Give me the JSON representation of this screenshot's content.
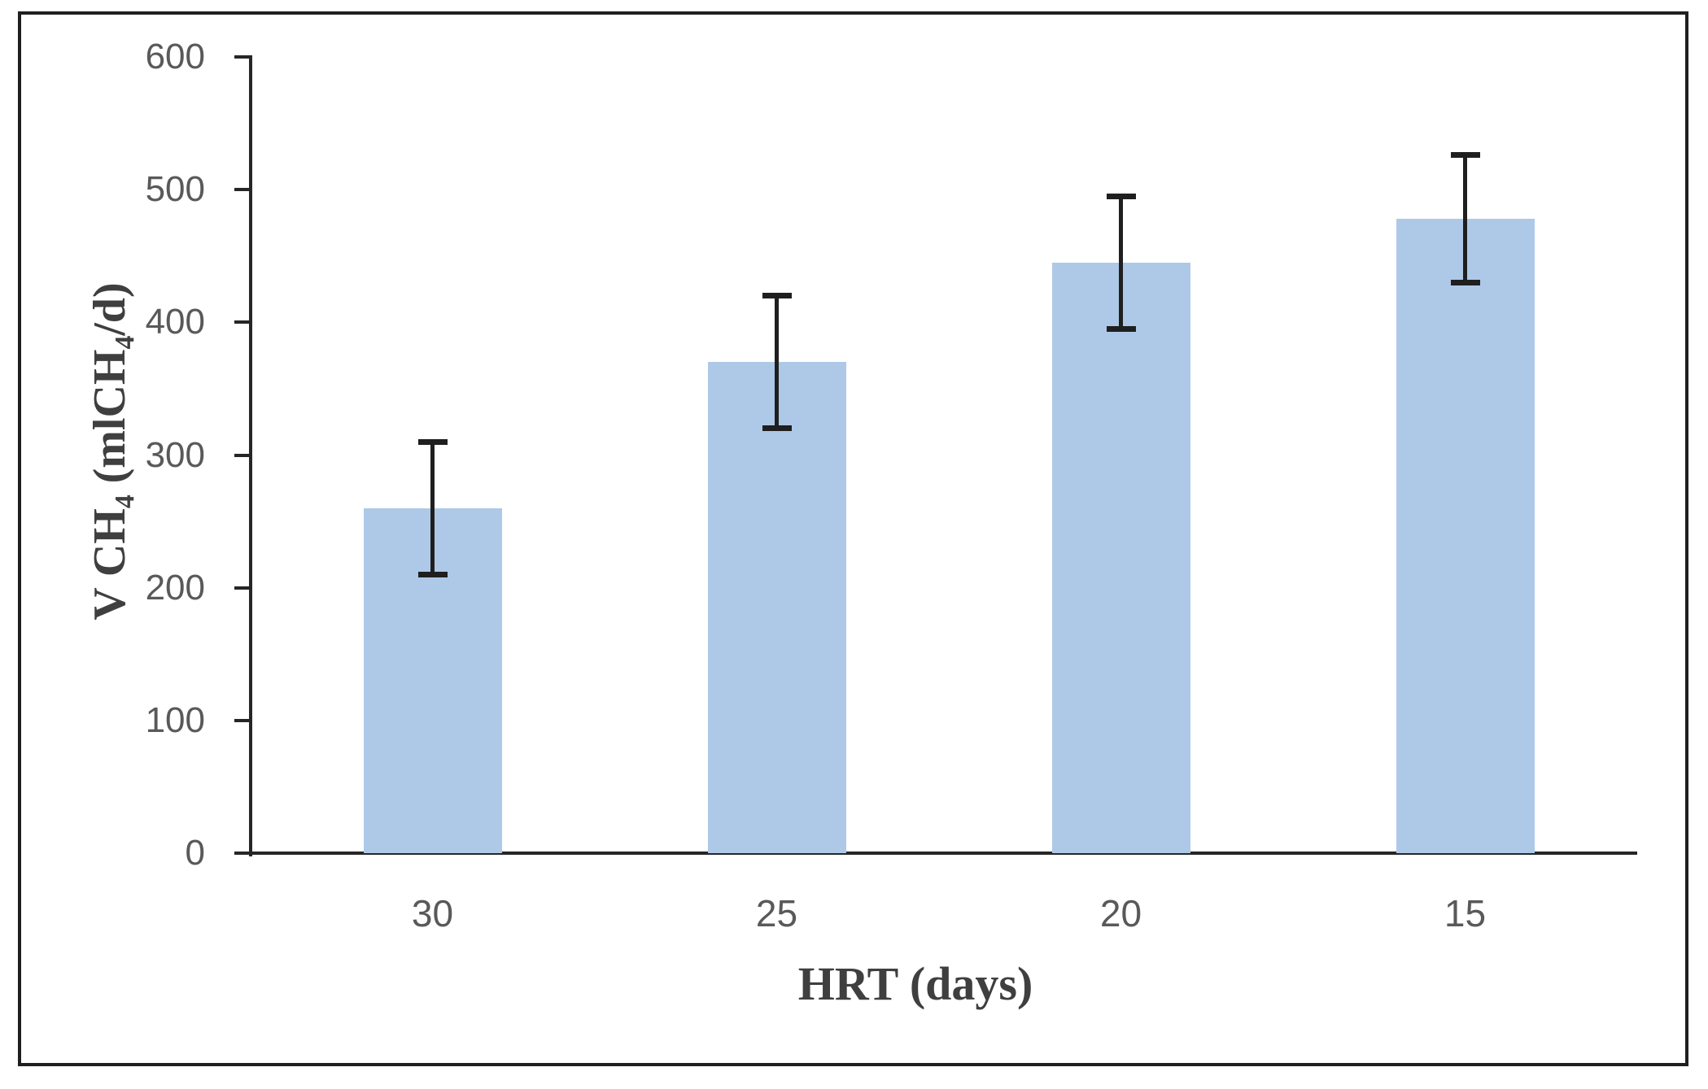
{
  "figure": {
    "background_color": "#ffffff",
    "border_color": "#1f1f1f"
  },
  "chart_data": {
    "type": "bar",
    "title": "",
    "xlabel": "HRT (days)",
    "ylabel": "V CH₄ (mlCH₄/d)",
    "categories": [
      "30",
      "25",
      "20",
      "15"
    ],
    "series": [
      {
        "name": "V CH4",
        "values": [
          260,
          370,
          445,
          478
        ],
        "error_plus": [
          50,
          50,
          50,
          48
        ],
        "error_minus": [
          50,
          50,
          50,
          48
        ]
      }
    ],
    "ylim": [
      0,
      600
    ],
    "ytick_interval": 100,
    "yticks": [
      0,
      100,
      200,
      300,
      400,
      500,
      600
    ],
    "grid": false,
    "legend": false,
    "bar_color": "#AEC9E8",
    "error_bar_color": "#1f1f1f",
    "axis_color": "#262626",
    "tick_label_color": "#595959",
    "axis_title_color": "#3f3f3f"
  }
}
